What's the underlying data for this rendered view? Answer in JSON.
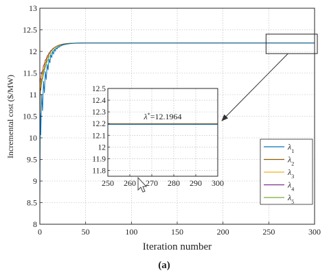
{
  "figure_label": "(a)",
  "colors": {
    "series": [
      "#0072BD",
      "#8B5A00",
      "#EDB120",
      "#7E2F8E",
      "#77AC30"
    ],
    "axis": "#262626",
    "grid": "#b0b0b0",
    "arrow": "#333333"
  },
  "chart_data": [
    {
      "type": "line",
      "role": "main",
      "xlabel": "Iteration number",
      "ylabel": "Incremental cost ($/MW)",
      "xlim": [
        0,
        300
      ],
      "ylim": [
        8,
        13
      ],
      "xticks": [
        "0",
        "50",
        "100",
        "150",
        "200",
        "250",
        "300"
      ],
      "yticks": [
        "8",
        "8.5",
        "9",
        "9.5",
        "10",
        "10.5",
        "11",
        "11.5",
        "12",
        "12.5",
        "13"
      ],
      "grid": true,
      "legend_position": "bottom-right",
      "converged_value": 12.1964,
      "series": [
        {
          "name": "λ1",
          "sub": "1",
          "initial": 8.5,
          "overshoot": 12.65,
          "settle_iter": 30
        },
        {
          "name": "λ2",
          "sub": "2",
          "initial": 10.0,
          "overshoot": 12.3,
          "settle_iter": 30
        },
        {
          "name": "λ3",
          "sub": "3",
          "initial": 10.3,
          "overshoot": 12.28,
          "settle_iter": 32
        },
        {
          "name": "λ4",
          "sub": "4",
          "initial": 10.5,
          "overshoot": 12.25,
          "settle_iter": 33
        },
        {
          "name": "λ5",
          "sub": "5",
          "initial": 10.0,
          "overshoot": 12.22,
          "settle_iter": 35
        }
      ],
      "zoom_box": {
        "x_range": [
          250,
          300
        ],
        "y_range": [
          11.95,
          12.4
        ]
      }
    },
    {
      "type": "line",
      "role": "inset",
      "xlim": [
        250,
        300
      ],
      "ylim": [
        11.75,
        12.5
      ],
      "xticks": [
        "250",
        "260",
        "270",
        "280",
        "290",
        "300"
      ],
      "yticks": [
        "11.8",
        "11.9",
        "12",
        "12.1",
        "12.2",
        "12.3",
        "12.4",
        "12.5"
      ],
      "grid": true,
      "annotation": {
        "symbol": "λ",
        "sup": "*",
        "text": "=12.1964",
        "value": 12.1964
      }
    }
  ]
}
